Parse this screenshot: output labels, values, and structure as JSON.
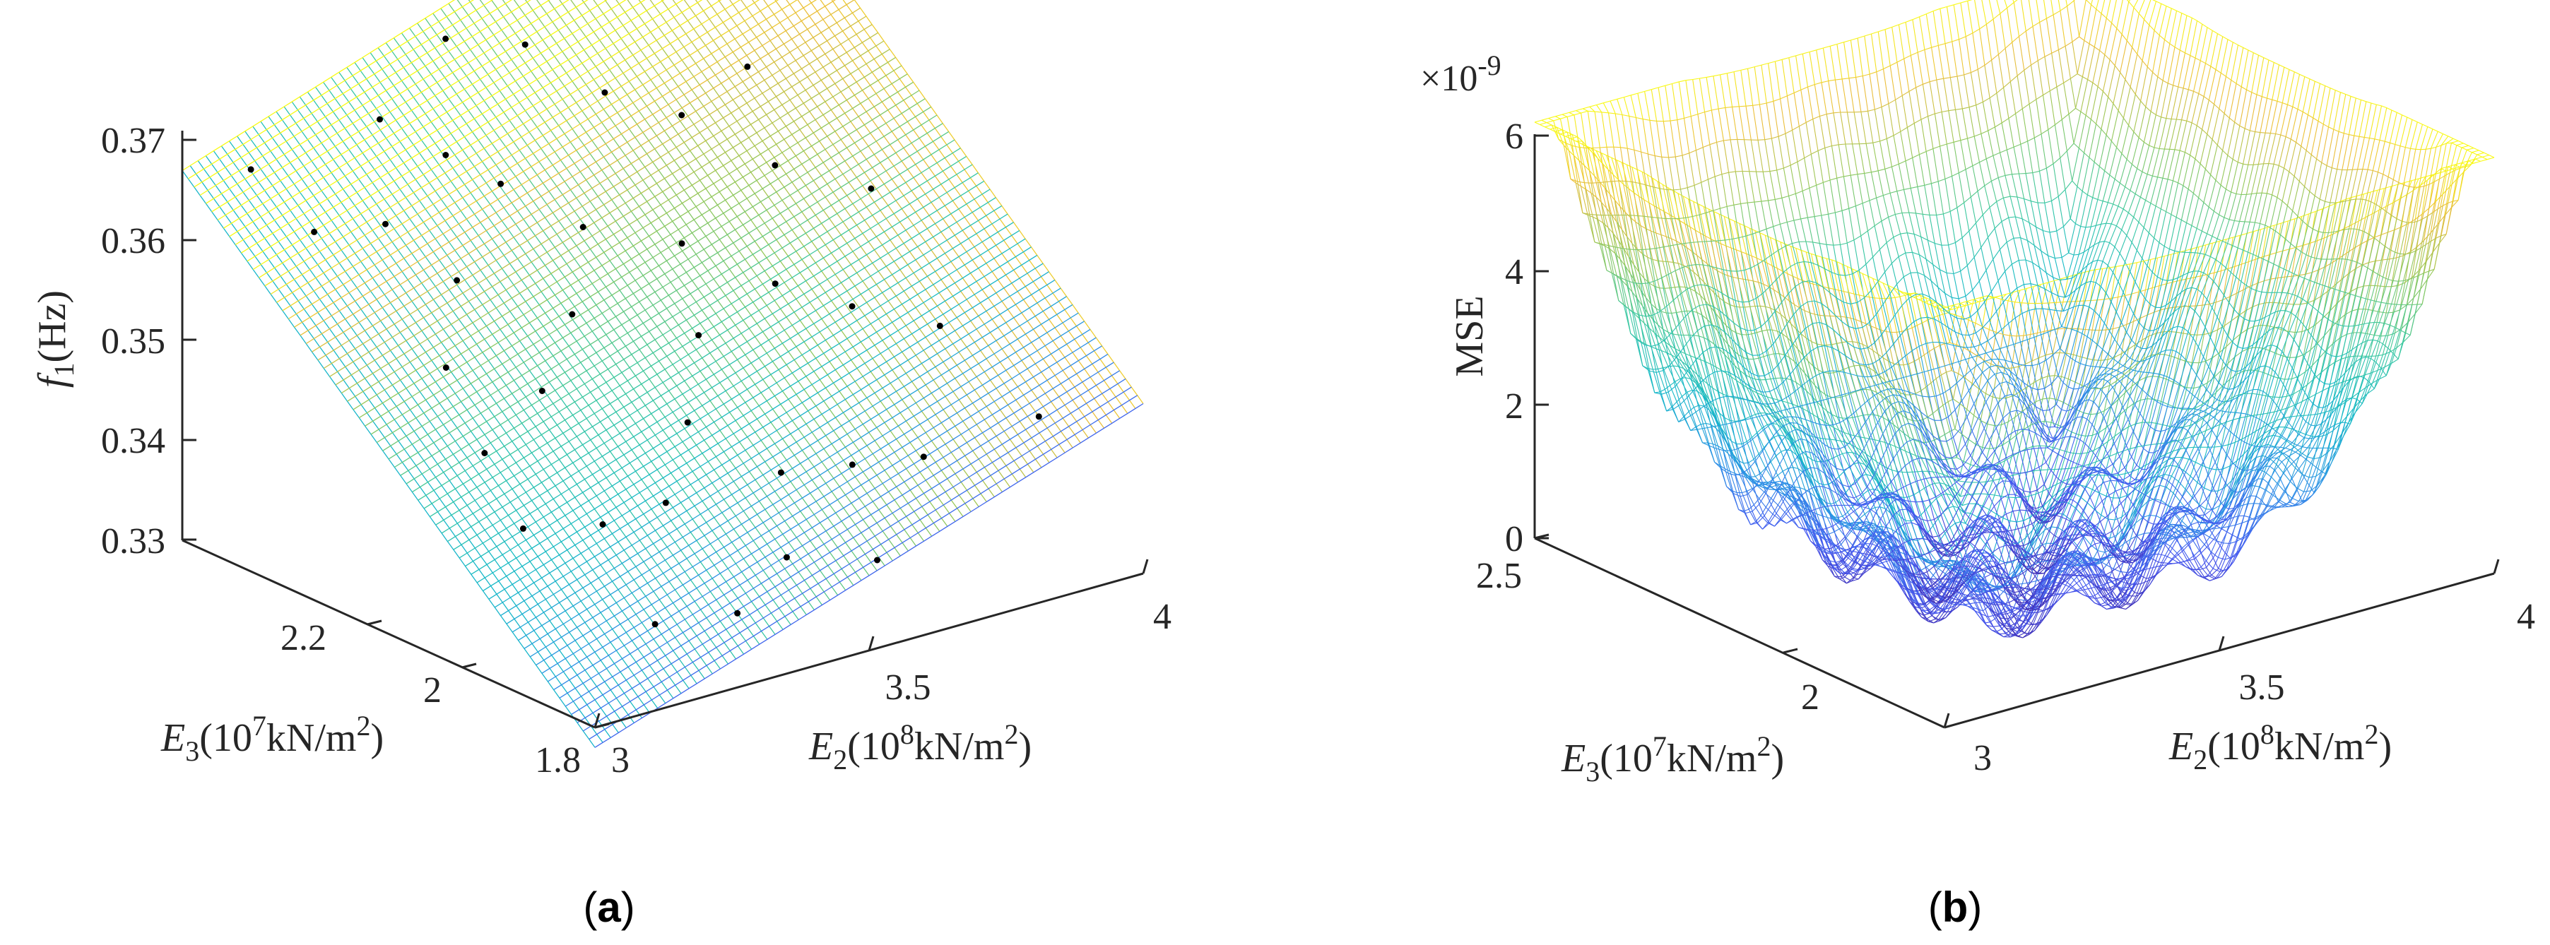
{
  "panels": [
    {
      "caption_open": "(",
      "caption_letter": "a",
      "caption_close": ")",
      "z_axis_label": {
        "symbol": "f",
        "sub": "1",
        "rest": "(Hz)"
      },
      "x_axis_label": {
        "symbol": "E",
        "sub": "2",
        "pre": "(10",
        "sup": "8",
        "mid": "kN/m",
        "sup2": "2",
        "post": ")"
      },
      "y_axis_label": {
        "symbol": "E",
        "sub": "3",
        "pre": "(10",
        "sup": "7",
        "mid": "kN/m",
        "sup2": "2",
        "post": ")"
      },
      "z_ticks": [
        "0.37",
        "0.36",
        "0.35",
        "0.34",
        "0.33"
      ],
      "x_ticks": [
        "3",
        "3.5",
        "4"
      ],
      "y_ticks": [
        "2.2",
        "2",
        "1.8"
      ]
    },
    {
      "caption_open": "(",
      "caption_letter": "b",
      "caption_close": ")",
      "z_axis_label": {
        "text": "MSE"
      },
      "z_multiplier": {
        "base": "×10",
        "exp": "-9"
      },
      "x_axis_label": {
        "symbol": "E",
        "sub": "2",
        "pre": "(10",
        "sup": "8",
        "mid": "kN/m",
        "sup2": "2",
        "post": ")"
      },
      "y_axis_label": {
        "symbol": "E",
        "sub": "3",
        "pre": "(10",
        "sup": "7",
        "mid": "kN/m",
        "sup2": "2",
        "post": ")"
      },
      "z_ticks": [
        "6",
        "4",
        "2",
        "0"
      ],
      "x_ticks": [
        "3",
        "3.5",
        "4"
      ],
      "y_ticks": [
        "2.5",
        "2"
      ]
    }
  ],
  "chart_data": [
    {
      "type": "surface",
      "title": "",
      "x_axis": "E2 (10^8 kN/m^2)",
      "y_axis": "E3 (10^7 kN/m^2)",
      "z_axis": "f1 (Hz)",
      "xlim": [
        3,
        4
      ],
      "ylim": [
        1.8,
        2.3
      ],
      "zlim": [
        0.33,
        0.37
      ],
      "colormap": "parula",
      "corner_values": {
        "x3_y1.8": 0.328,
        "x4_y1.8": 0.347,
        "x3_y2.3": 0.367,
        "x4_y2.3": 0.386
      },
      "scatter_note_values": "sample points lying on the surface",
      "sample_points": [
        {
          "x": 3.08,
          "y": 2.27,
          "z": 0.367
        },
        {
          "x": 3.12,
          "y": 2.22,
          "z": 0.362
        },
        {
          "x": 3.22,
          "y": 2.2,
          "z": 0.362
        },
        {
          "x": 3.3,
          "y": 2.26,
          "z": 0.369
        },
        {
          "x": 3.36,
          "y": 2.22,
          "z": 0.366
        },
        {
          "x": 3.45,
          "y": 2.28,
          "z": 0.374
        },
        {
          "x": 3.55,
          "y": 2.25,
          "z": 0.373
        },
        {
          "x": 3.62,
          "y": 2.2,
          "z": 0.369
        },
        {
          "x": 3.7,
          "y": 2.16,
          "z": 0.367
        },
        {
          "x": 3.78,
          "y": 2.1,
          "z": 0.363
        },
        {
          "x": 3.88,
          "y": 2.05,
          "z": 0.361
        },
        {
          "x": 3.18,
          "y": 2.1,
          "z": 0.352
        },
        {
          "x": 3.28,
          "y": 2.05,
          "z": 0.35
        },
        {
          "x": 3.38,
          "y": 2.08,
          "z": 0.355
        },
        {
          "x": 3.46,
          "y": 2.12,
          "z": 0.361
        },
        {
          "x": 3.58,
          "y": 2.08,
          "z": 0.359
        },
        {
          "x": 3.66,
          "y": 2.02,
          "z": 0.356
        },
        {
          "x": 3.74,
          "y": 1.98,
          "z": 0.354
        },
        {
          "x": 3.84,
          "y": 1.94,
          "z": 0.352
        },
        {
          "x": 3.14,
          "y": 1.98,
          "z": 0.341
        },
        {
          "x": 3.24,
          "y": 1.95,
          "z": 0.341
        },
        {
          "x": 3.34,
          "y": 1.94,
          "z": 0.342
        },
        {
          "x": 3.44,
          "y": 1.98,
          "z": 0.347
        },
        {
          "x": 3.52,
          "y": 1.92,
          "z": 0.343
        },
        {
          "x": 3.62,
          "y": 1.9,
          "z": 0.343
        },
        {
          "x": 3.72,
          "y": 1.88,
          "z": 0.343
        },
        {
          "x": 3.9,
          "y": 1.86,
          "z": 0.345
        },
        {
          "x": 3.2,
          "y": 1.86,
          "z": 0.335
        },
        {
          "x": 3.32,
          "y": 1.84,
          "z": 0.335
        },
        {
          "x": 3.44,
          "y": 1.86,
          "z": 0.338
        },
        {
          "x": 3.56,
          "y": 1.83,
          "z": 0.337
        },
        {
          "x": 3.26,
          "y": 2.14,
          "z": 0.358
        },
        {
          "x": 3.4,
          "y": 2.18,
          "z": 0.364
        },
        {
          "x": 3.52,
          "y": 2.02,
          "z": 0.353
        },
        {
          "x": 3.82,
          "y": 2.16,
          "z": 0.37
        },
        {
          "x": 3.16,
          "y": 2.04,
          "z": 0.346
        }
      ]
    },
    {
      "type": "surface",
      "title": "",
      "x_axis": "E2 (10^8 kN/m^2)",
      "y_axis": "E3 (10^7 kN/m^2)",
      "z_axis": "MSE",
      "z_scale_factor": "1e-9",
      "xlim": [
        3,
        4
      ],
      "ylim": [
        1.8,
        2.6
      ],
      "zlim": [
        0,
        6
      ],
      "colormap": "parula",
      "corner_values": {
        "x3_y1.8": 5.1,
        "x4_y1.8": 4.0,
        "x3_y2.6": 5.6,
        "x4_y2.6": 6.2
      },
      "minimum_region": {
        "x": 3.5,
        "y": 2.2,
        "z": 0.0
      },
      "description_values": "bowl-shaped error surface with oscillating ripples, minimum near centre"
    }
  ]
}
